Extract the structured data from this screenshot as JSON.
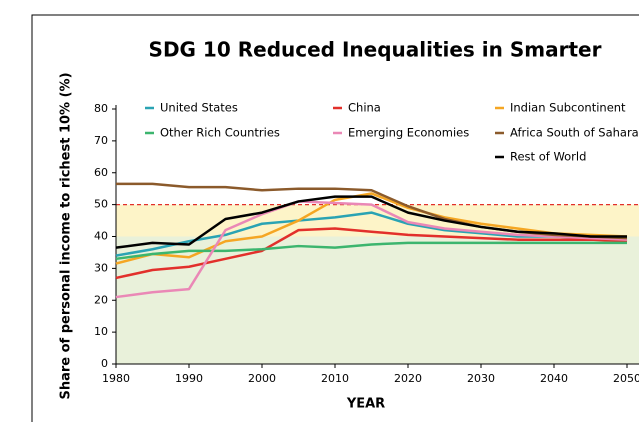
{
  "chart_data": {
    "type": "line",
    "title": "SDG 10 Reduced Inequalities in Smarter",
    "y_label": "Share of personal income to richest 10% (%)",
    "x_label": "YEAR",
    "x": [
      1980,
      1985,
      1990,
      1995,
      2000,
      2005,
      2010,
      2015,
      2020,
      2025,
      2030,
      2035,
      2040,
      2045,
      2050
    ],
    "series": [
      {
        "name": "United States",
        "color": "#2aa3b3",
        "values": [
          34,
          36,
          38.5,
          40.5,
          44,
          45,
          46,
          47.5,
          44,
          42,
          41,
          40,
          40,
          39.5,
          39
        ]
      },
      {
        "name": "China",
        "color": "#e2302b",
        "values": [
          27,
          29.5,
          30.5,
          33,
          35.5,
          42,
          42.5,
          41.5,
          40.5,
          40,
          39.5,
          39,
          39,
          39,
          38.5
        ]
      },
      {
        "name": "Indian Subcontinent",
        "color": "#f5a623",
        "values": [
          31.5,
          34.5,
          33.5,
          38.5,
          40,
          45,
          51.5,
          53.5,
          49,
          46,
          44,
          42.5,
          41,
          40.5,
          40
        ]
      },
      {
        "name": "Other Rich Countries",
        "color": "#3cb56e",
        "values": [
          33,
          34.5,
          35.5,
          35.5,
          36,
          37,
          36.5,
          37.5,
          38,
          38,
          38,
          38,
          38,
          38,
          38
        ]
      },
      {
        "name": "Emerging Economies",
        "color": "#ea88b6",
        "values": [
          21,
          22.5,
          23.5,
          42,
          47,
          51,
          50.5,
          50,
          44.5,
          42.5,
          41.5,
          40.5,
          40,
          39.5,
          39
        ]
      },
      {
        "name": "Africa South of Sahara",
        "color": "#8b5a2b",
        "values": [
          56.5,
          56.5,
          55.5,
          55.5,
          54.5,
          55,
          55,
          54.5,
          49.5,
          45.5,
          43,
          41.5,
          40.5,
          40,
          39.5
        ]
      },
      {
        "name": "Rest of World",
        "color": "#000000",
        "values": [
          36.5,
          38,
          37.5,
          45.5,
          47.5,
          51,
          52.5,
          52.5,
          47.5,
          45,
          43,
          41.5,
          41,
          40,
          40
        ]
      }
    ],
    "xlim": [
      1980,
      2050
    ],
    "xticks": [
      1980,
      1990,
      2000,
      2010,
      2020,
      2030,
      2040,
      2050
    ],
    "ylim": [
      0,
      80
    ],
    "yticks": [
      0,
      10,
      20,
      30,
      40,
      50,
      60,
      70,
      80
    ],
    "reference_line": 50,
    "shaded_band": [
      40,
      50
    ]
  }
}
